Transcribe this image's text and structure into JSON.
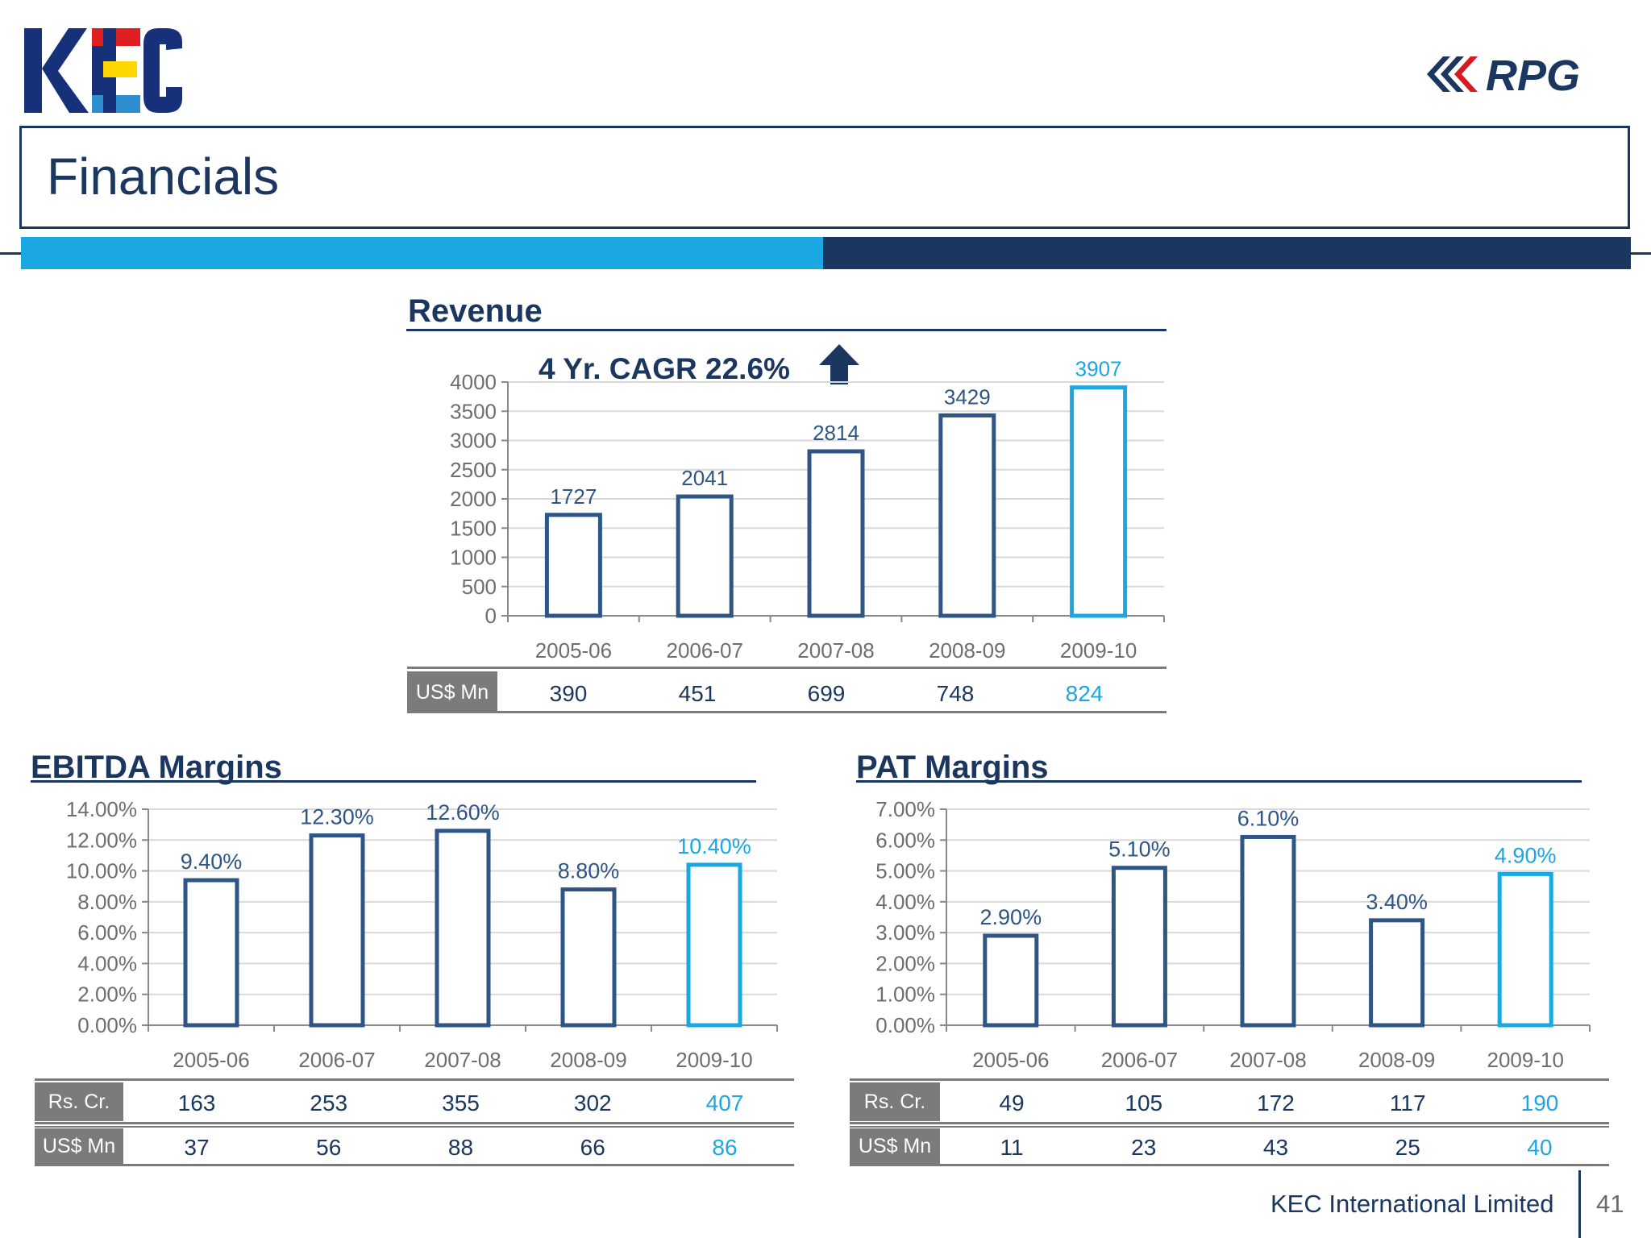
{
  "slide": {
    "title": "Financials",
    "company": "KEC International Limited",
    "page_number": "41"
  },
  "logos": {
    "kec": "KEC",
    "rpg": "RPG"
  },
  "colors": {
    "navy": "#1b3760",
    "bar_navy": "#2f5587",
    "highlight": "#1aa7e2",
    "gray_label": "#7b7b7b",
    "grid": "#d9d9d9"
  },
  "revenue": {
    "title": "Revenue",
    "cagr": "4 Yr. CAGR 22.6%",
    "arrow_icon": "up-arrow-icon",
    "table": {
      "rows": [
        {
          "label": "US$ Mn",
          "values": [
            "390",
            "451",
            "699",
            "748",
            "824"
          ]
        }
      ]
    }
  },
  "ebitda": {
    "title": "EBITDA Margins",
    "table": {
      "rows": [
        {
          "label": "Rs. Cr.",
          "values": [
            "163",
            "253",
            "355",
            "302",
            "407"
          ]
        },
        {
          "label": "US$ Mn",
          "values": [
            "37",
            "56",
            "88",
            "66",
            "86"
          ]
        }
      ]
    }
  },
  "pat": {
    "title": "PAT Margins",
    "table": {
      "rows": [
        {
          "label": "Rs. Cr.",
          "values": [
            "49",
            "105",
            "172",
            "117",
            "190"
          ]
        },
        {
          "label": "US$ Mn",
          "values": [
            "11",
            "23",
            "43",
            "25",
            "40"
          ]
        }
      ]
    }
  },
  "chart_data": [
    {
      "id": "revenue",
      "type": "bar",
      "categories": [
        "2005-06",
        "2006-07",
        "2007-08",
        "2008-09",
        "2009-10"
      ],
      "values": [
        1727,
        2041,
        2814,
        3429,
        3907
      ],
      "data_labels": [
        "1727",
        "2041",
        "2814",
        "3429",
        "3907"
      ],
      "ylim": [
        0,
        4000
      ],
      "yticks": [
        0,
        500,
        1000,
        1500,
        2000,
        2500,
        3000,
        3500,
        4000
      ],
      "ytick_labels": [
        "0",
        "500",
        "1000",
        "1500",
        "2000",
        "2500",
        "3000",
        "3500",
        "4000"
      ],
      "highlight_index": 4,
      "grid": true
    },
    {
      "id": "ebitda",
      "type": "bar",
      "categories": [
        "2005-06",
        "2006-07",
        "2007-08",
        "2008-09",
        "2009-10"
      ],
      "values": [
        9.4,
        12.3,
        12.6,
        8.8,
        10.4
      ],
      "data_labels": [
        "9.40%",
        "12.30%",
        "12.60%",
        "8.80%",
        "10.40%"
      ],
      "ylim": [
        0,
        14
      ],
      "yticks": [
        0,
        2,
        4,
        6,
        8,
        10,
        12,
        14
      ],
      "ytick_labels": [
        "0.00%",
        "2.00%",
        "4.00%",
        "6.00%",
        "8.00%",
        "10.00%",
        "12.00%",
        "14.00%"
      ],
      "highlight_index": 4,
      "grid": true
    },
    {
      "id": "pat",
      "type": "bar",
      "categories": [
        "2005-06",
        "2006-07",
        "2007-08",
        "2008-09",
        "2009-10"
      ],
      "values": [
        2.9,
        5.1,
        6.1,
        3.4,
        4.9
      ],
      "data_labels": [
        "2.90%",
        "5.10%",
        "6.10%",
        "3.40%",
        "4.90%"
      ],
      "ylim": [
        0,
        7
      ],
      "yticks": [
        0,
        1,
        2,
        3,
        4,
        5,
        6,
        7
      ],
      "ytick_labels": [
        "0.00%",
        "1.00%",
        "2.00%",
        "3.00%",
        "4.00%",
        "5.00%",
        "6.00%",
        "7.00%"
      ],
      "highlight_index": 4,
      "grid": true
    }
  ]
}
